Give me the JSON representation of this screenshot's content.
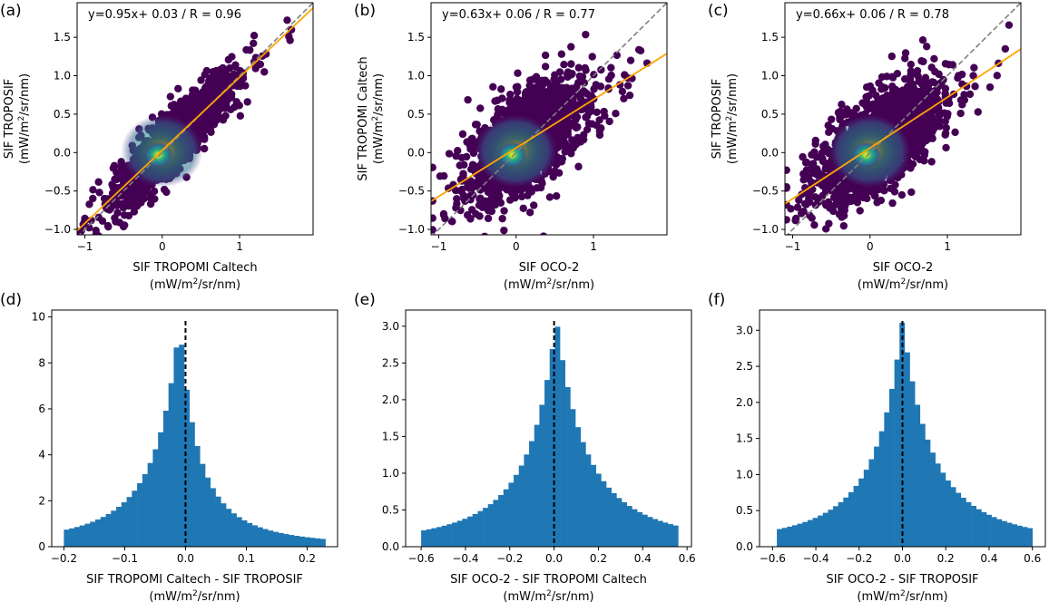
{
  "chart_data": [
    {
      "type": "scatter",
      "panel_label": "(a)",
      "annotation": "y=0.95x+ 0.03 / R = 0.96",
      "slope": 0.95,
      "intercept": 0.03,
      "r": 0.96,
      "xlabel": "SIF TROPOMI Caltech",
      "ylabel": "SIF TROPOSIF",
      "unit_pre": "(mW/m",
      "unit_sup": "2",
      "unit_post": "/sr/nm)",
      "xlim": [
        -1.1,
        1.95
      ],
      "ylim": [
        -1.07,
        1.95
      ],
      "xticks": [
        -1,
        0,
        1
      ],
      "yticks": [
        -1.0,
        -0.5,
        0.0,
        0.5,
        1.0,
        1.5
      ],
      "xtick_labels": [
        "−1",
        "0",
        "1"
      ],
      "ytick_labels": [
        "−1.0",
        "−0.5",
        "0.0",
        "0.5",
        "1.0",
        "1.5"
      ],
      "cloud_spread": 0.17,
      "one_to_one_line": true,
      "regression_color": "#ffa500"
    },
    {
      "type": "scatter",
      "panel_label": "(b)",
      "annotation": "y=0.63x+ 0.06 / R = 0.77",
      "slope": 0.63,
      "intercept": 0.06,
      "r": 0.77,
      "xlabel": "SIF OCO-2",
      "ylabel": "SIF TROPOMI Caltech",
      "unit_pre": "(mW/m",
      "unit_sup": "2",
      "unit_post": "/sr/nm)",
      "xlim": [
        -1.1,
        1.95
      ],
      "ylim": [
        -1.07,
        1.95
      ],
      "xticks": [
        -1,
        0,
        1
      ],
      "yticks": [
        -1.0,
        -0.5,
        0.0,
        0.5,
        1.0,
        1.5
      ],
      "xtick_labels": [
        "−1",
        "0",
        "1"
      ],
      "ytick_labels": [
        "−1.0",
        "−0.5",
        "0.0",
        "0.5",
        "1.0",
        "1.5"
      ],
      "cloud_spread": 0.27,
      "one_to_one_line": true,
      "regression_color": "#ffa500"
    },
    {
      "type": "scatter",
      "panel_label": "(c)",
      "annotation": "y=0.66x+ 0.06 / R = 0.78",
      "slope": 0.66,
      "intercept": 0.06,
      "r": 0.78,
      "xlabel": "SIF OCO-2",
      "ylabel": "SIF TROPOSIF",
      "unit_pre": "(mW/m",
      "unit_sup": "2",
      "unit_post": "/sr/nm)",
      "xlim": [
        -1.1,
        1.95
      ],
      "ylim": [
        -1.07,
        1.95
      ],
      "xticks": [
        -1,
        0,
        1
      ],
      "yticks": [
        -1.0,
        -0.5,
        0.0,
        0.5,
        1.0,
        1.5
      ],
      "xtick_labels": [
        "−1",
        "0",
        "1"
      ],
      "ytick_labels": [
        "−1.0",
        "−0.5",
        "0.0",
        "0.5",
        "1.0",
        "1.5"
      ],
      "cloud_spread": 0.26,
      "one_to_one_line": true,
      "regression_color": "#ffa500"
    },
    {
      "type": "bar",
      "subtype": "histogram",
      "panel_label": "(d)",
      "xlabel": "SIF TROPOMI Caltech  -  SIF TROPOSIF",
      "unit_pre": "(mW/m",
      "unit_sup": "2",
      "unit_post": "/sr/nm)",
      "xlim": [
        -0.22,
        0.25
      ],
      "ylim": [
        0,
        10.3
      ],
      "xticks": [
        -0.2,
        -0.1,
        0.0,
        0.1,
        0.2
      ],
      "xtick_labels": [
        "−0.2",
        "−0.1",
        "0.0",
        "0.1",
        "0.2"
      ],
      "yticks": [
        0,
        2,
        4,
        6,
        8,
        10
      ],
      "ytick_labels": [
        "0",
        "2",
        "4",
        "6",
        "8",
        "10"
      ],
      "range": [
        -0.2,
        0.23
      ],
      "mode": -0.01,
      "peak": 9.8,
      "left_width": 0.045,
      "right_width": 0.035,
      "zero_line": 0.0,
      "color": "#1f77b4"
    },
    {
      "type": "bar",
      "subtype": "histogram",
      "panel_label": "(e)",
      "xlabel": "SIF OCO-2  -  SIF TROPOMI Caltech",
      "unit_pre": "(mW/m",
      "unit_sup": "2",
      "unit_post": "/sr/nm)",
      "xlim": [
        -0.67,
        0.62
      ],
      "ylim": [
        0,
        3.22
      ],
      "xticks": [
        -0.6,
        -0.4,
        -0.2,
        0.0,
        0.2,
        0.4,
        0.6
      ],
      "xtick_labels": [
        "−0.6",
        "−0.4",
        "−0.2",
        "0.0",
        "0.2",
        "0.4",
        "0.6"
      ],
      "yticks": [
        0.0,
        0.5,
        1.0,
        1.5,
        2.0,
        2.5,
        3.0
      ],
      "ytick_labels": [
        "0.0",
        "0.5",
        "1.0",
        "1.5",
        "2.0",
        "2.5",
        "3.0"
      ],
      "range": [
        -0.6,
        0.56
      ],
      "mode": 0.01,
      "peak": 3.1,
      "left_width": 0.14,
      "right_width": 0.15,
      "zero_line": 0.0,
      "color": "#1f77b4"
    },
    {
      "type": "bar",
      "subtype": "histogram",
      "panel_label": "(f)",
      "xlabel": "SIF OCO-2  -  SIF TROPOSIF",
      "unit_pre": "(mW/m",
      "unit_sup": "2",
      "unit_post": "/sr/nm)",
      "xlim": [
        -0.66,
        0.66
      ],
      "ylim": [
        0,
        3.28
      ],
      "xticks": [
        -0.6,
        -0.4,
        -0.2,
        0.0,
        0.2,
        0.4,
        0.6
      ],
      "xtick_labels": [
        "−0.6",
        "−0.4",
        "−0.2",
        "0.0",
        "0.2",
        "0.4",
        "0.6"
      ],
      "yticks": [
        0.0,
        0.5,
        1.0,
        1.5,
        2.0,
        2.5,
        3.0
      ],
      "ytick_labels": [
        "0.0",
        "0.5",
        "1.0",
        "1.5",
        "2.0",
        "2.5",
        "3.0"
      ],
      "range": [
        -0.58,
        0.6
      ],
      "mode": 0.0,
      "peak": 3.15,
      "left_width": 0.14,
      "right_width": 0.15,
      "zero_line": 0.0,
      "color": "#1f77b4"
    }
  ]
}
